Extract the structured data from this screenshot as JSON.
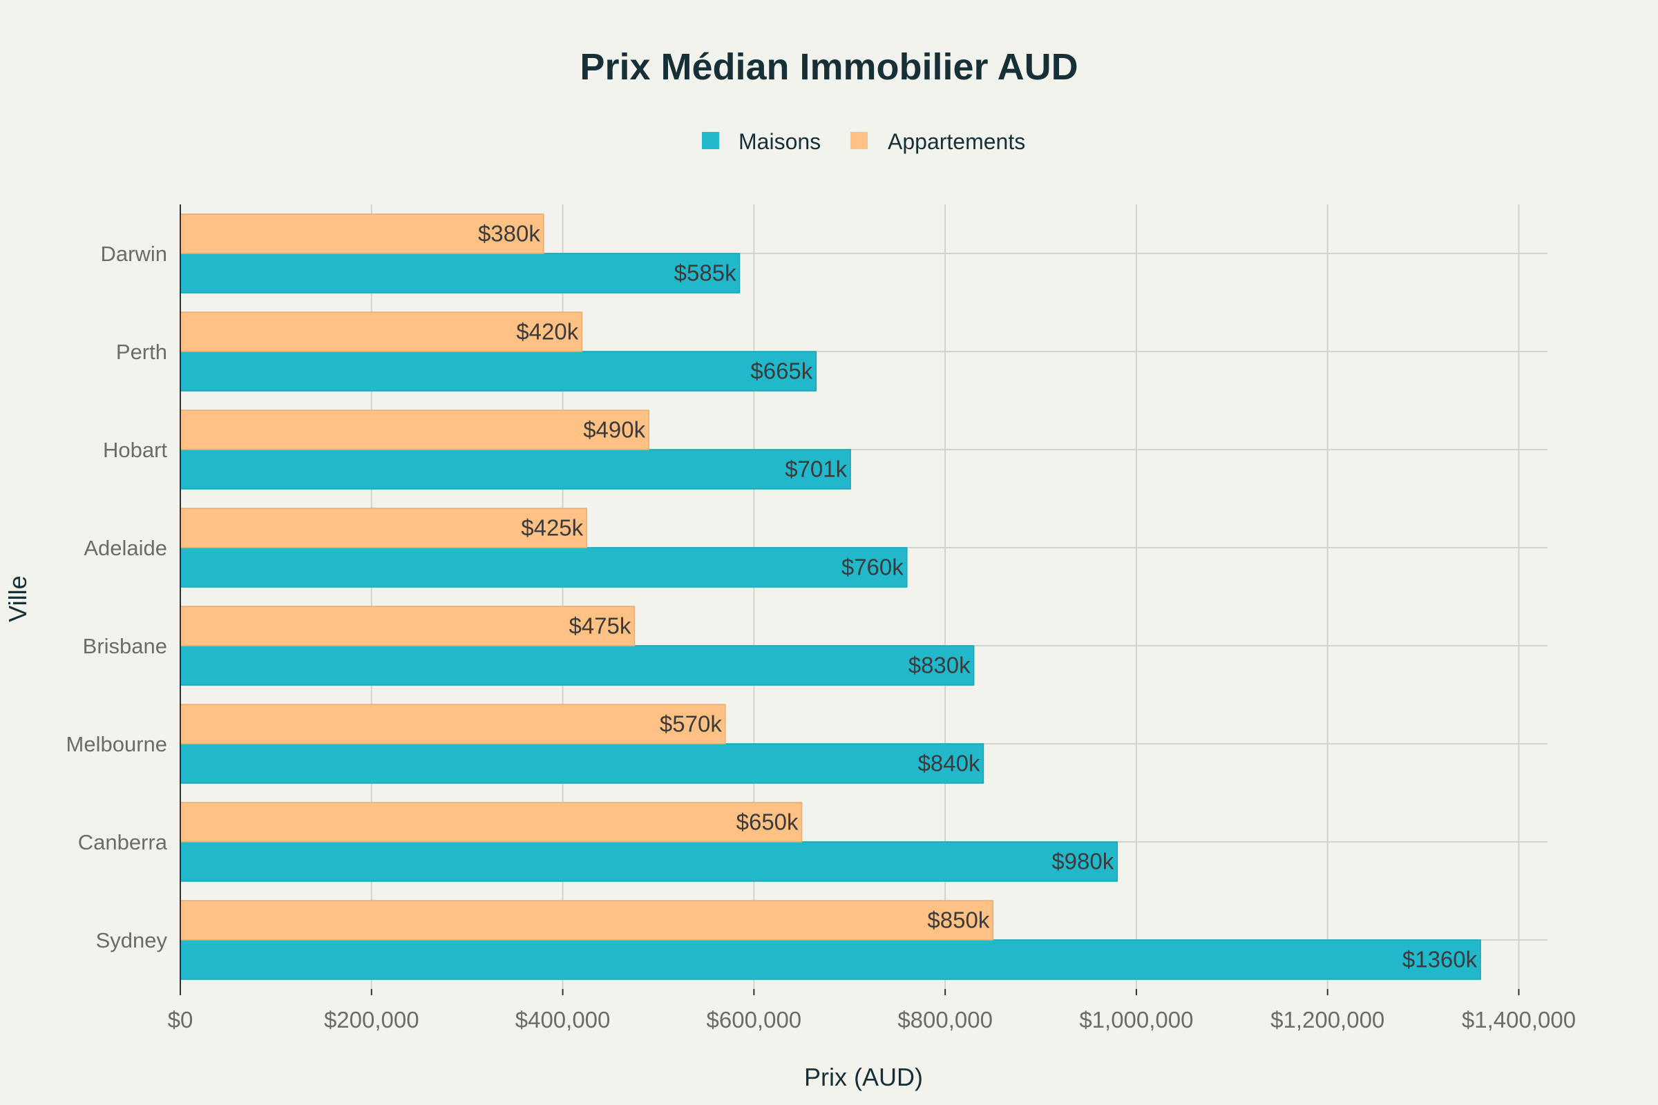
{
  "chart_data": {
    "type": "bar",
    "orientation": "horizontal",
    "title": "Prix Médian Immobilier AUD",
    "xlabel": "Prix (AUD)",
    "ylabel": "Ville",
    "xlim": [
      0,
      1430000
    ],
    "x_ticks": [
      0,
      200000,
      400000,
      600000,
      800000,
      1000000,
      1200000,
      1400000
    ],
    "x_tick_labels": [
      "$0",
      "$200,000",
      "$400,000",
      "$600,000",
      "$800,000",
      "$1,000,000",
      "$1,200,000",
      "$1,400,000"
    ],
    "categories": [
      "Sydney",
      "Canberra",
      "Melbourne",
      "Brisbane",
      "Adelaide",
      "Hobart",
      "Perth",
      "Darwin"
    ],
    "series": [
      {
        "name": "Maisons",
        "color": "#22b8cc",
        "values": [
          1360000,
          980000,
          840000,
          830000,
          760000,
          701000,
          665000,
          585000
        ],
        "labels": [
          "$1360k",
          "$980k",
          "$840k",
          "$830k",
          "$760k",
          "$701k",
          "$665k",
          "$585k"
        ]
      },
      {
        "name": "Appartements",
        "color": "#ffc184",
        "values": [
          850000,
          650000,
          570000,
          475000,
          425000,
          490000,
          420000,
          380000
        ],
        "labels": [
          "$850k",
          "$650k",
          "$570k",
          "$475k",
          "$425k",
          "$490k",
          "$420k",
          "$380k"
        ]
      }
    ],
    "grid": true,
    "legend_position": "top-center"
  }
}
